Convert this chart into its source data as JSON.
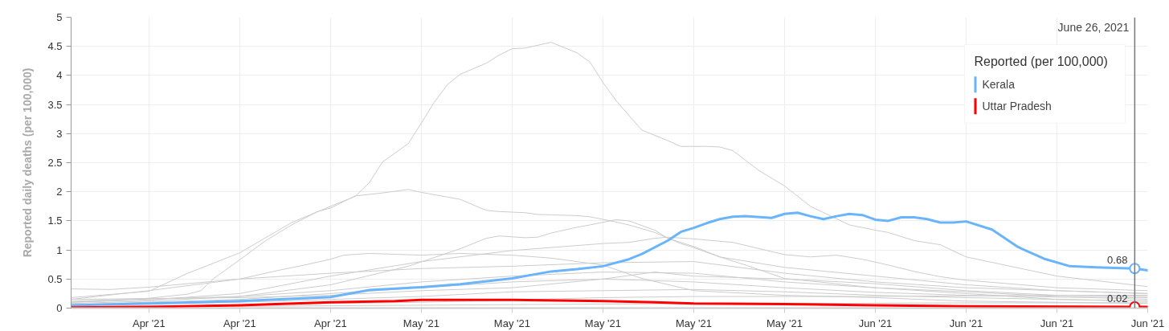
{
  "chart_data": {
    "type": "line",
    "ylabel": "Reported daily deaths (per 100,000)",
    "legend_title": "Reported (per 100,000)",
    "legend": "top right",
    "grid": true,
    "xlim": [
      "2021-04-05",
      "2021-06-27"
    ],
    "xticks": [
      {
        "value": "2021-04-11",
        "label": "Apr '21"
      },
      {
        "value": "2021-04-18",
        "label": "Apr '21"
      },
      {
        "value": "2021-04-25",
        "label": "Apr '21"
      },
      {
        "value": "2021-05-02",
        "label": "May '21"
      },
      {
        "value": "2021-05-09",
        "label": "May '21"
      },
      {
        "value": "2021-05-16",
        "label": "May '21"
      },
      {
        "value": "2021-05-23",
        "label": "May '21"
      },
      {
        "value": "2021-05-30",
        "label": "May '21"
      },
      {
        "value": "2021-06-06",
        "label": "Jun '21"
      },
      {
        "value": "2021-06-13",
        "label": "Jun '21"
      },
      {
        "value": "2021-06-20",
        "label": "Jun '21"
      },
      {
        "value": "2021-06-27",
        "label": "Jun '21"
      }
    ],
    "ylim": [
      0,
      5
    ],
    "yticks": [
      0,
      0.5,
      1,
      1.5,
      2,
      2.5,
      3,
      3.5,
      4,
      4.5,
      5
    ],
    "ref_lines": [
      {
        "axis": "x",
        "value": "2021-06-26",
        "label": "June 26, 2021",
        "color": "#777777"
      }
    ],
    "series": [
      {
        "color": "#cccccc",
        "x": [
          "2021-04-05",
          "2021-04-11",
          "2021-04-14",
          "2021-04-15",
          "2021-04-16",
          "2021-04-18",
          "2021-04-20",
          "2021-04-22",
          "2021-04-24",
          "2021-04-25",
          "2021-04-27",
          "2021-04-28",
          "2021-04-29",
          "2021-05-01",
          "2021-05-02",
          "2021-05-03",
          "2021-05-04",
          "2021-05-05",
          "2021-05-07",
          "2021-05-08",
          "2021-05-09",
          "2021-05-10",
          "2021-05-12",
          "2021-05-14",
          "2021-05-15",
          "2021-05-16",
          "2021-05-17",
          "2021-05-19",
          "2021-05-21",
          "2021-05-22",
          "2021-05-24",
          "2021-05-25",
          "2021-05-26",
          "2021-05-28",
          "2021-05-30",
          "2021-06-01",
          "2021-06-04",
          "2021-06-06",
          "2021-06-07",
          "2021-06-09",
          "2021-06-11",
          "2021-06-13",
          "2021-06-20",
          "2021-06-27"
        ],
        "values": [
          0.1,
          0.17,
          0.24,
          0.3,
          0.51,
          0.83,
          1.16,
          1.43,
          1.66,
          1.72,
          1.94,
          2.16,
          2.51,
          2.83,
          3.18,
          3.54,
          3.84,
          4.02,
          4.21,
          4.35,
          4.46,
          4.47,
          4.57,
          4.39,
          4.23,
          3.88,
          3.57,
          3.06,
          2.88,
          2.78,
          2.78,
          2.77,
          2.71,
          2.37,
          2.1,
          1.75,
          1.43,
          1.34,
          1.3,
          1.16,
          1.09,
          0.88,
          0.55,
          0.37
        ]
      },
      {
        "color": "#cccccc",
        "x": [
          "2021-04-05",
          "2021-04-11",
          "2021-04-14",
          "2021-04-18",
          "2021-04-22",
          "2021-04-25",
          "2021-04-27",
          "2021-04-29",
          "2021-05-01",
          "2021-05-02",
          "2021-05-04",
          "2021-05-05",
          "2021-05-07",
          "2021-05-08",
          "2021-05-10",
          "2021-05-11",
          "2021-05-14",
          "2021-05-15",
          "2021-05-17",
          "2021-05-18",
          "2021-05-20",
          "2021-05-22",
          "2021-05-23",
          "2021-05-25",
          "2021-05-27",
          "2021-05-30",
          "2021-06-06",
          "2021-06-13",
          "2021-06-20",
          "2021-06-27"
        ],
        "values": [
          0.18,
          0.29,
          0.6,
          0.95,
          1.47,
          1.75,
          1.93,
          1.98,
          2.04,
          1.99,
          1.91,
          1.87,
          1.68,
          1.66,
          1.64,
          1.61,
          1.59,
          1.57,
          1.48,
          1.43,
          1.3,
          1.11,
          1.04,
          0.88,
          0.74,
          0.51,
          0.35,
          0.25,
          0.15,
          0.12
        ]
      },
      {
        "color": "#cccccc",
        "x": [
          "2021-04-05",
          "2021-04-11",
          "2021-04-18",
          "2021-04-25",
          "2021-05-01",
          "2021-05-05",
          "2021-05-07",
          "2021-05-08",
          "2021-05-10",
          "2021-05-11",
          "2021-05-12",
          "2021-05-14",
          "2021-05-15",
          "2021-05-17",
          "2021-05-18",
          "2021-05-20",
          "2021-05-21",
          "2021-05-23",
          "2021-05-25",
          "2021-05-30",
          "2021-06-06",
          "2021-06-13",
          "2021-06-20",
          "2021-06-27"
        ],
        "values": [
          0.08,
          0.12,
          0.2,
          0.4,
          0.72,
          1.02,
          1.2,
          1.24,
          1.21,
          1.22,
          1.29,
          1.39,
          1.43,
          1.52,
          1.5,
          1.34,
          1.2,
          1.06,
          0.88,
          0.7,
          0.55,
          0.4,
          0.3,
          0.25
        ]
      },
      {
        "color": "#cccccc",
        "x": [
          "2021-04-05",
          "2021-04-08",
          "2021-04-11",
          "2021-04-18",
          "2021-04-25",
          "2021-05-02",
          "2021-05-09",
          "2021-05-16",
          "2021-05-23",
          "2021-05-30",
          "2021-06-06",
          "2021-06-13",
          "2021-06-20",
          "2021-06-27"
        ],
        "values": [
          0.33,
          0.32,
          0.36,
          0.5,
          0.6,
          0.68,
          0.72,
          0.78,
          0.8,
          0.6,
          0.45,
          0.35,
          0.3,
          0.25
        ]
      },
      {
        "color": "#cccccc",
        "x": [
          "2021-04-05",
          "2021-04-11",
          "2021-04-18",
          "2021-04-21",
          "2021-04-23",
          "2021-04-25",
          "2021-04-26",
          "2021-04-28",
          "2021-05-02",
          "2021-05-05",
          "2021-05-09",
          "2021-05-12",
          "2021-05-16",
          "2021-05-19",
          "2021-05-23",
          "2021-05-30",
          "2021-06-06",
          "2021-06-13",
          "2021-06-20",
          "2021-06-27"
        ],
        "values": [
          0.15,
          0.3,
          0.5,
          0.65,
          0.74,
          0.84,
          0.91,
          0.94,
          0.91,
          0.94,
          0.91,
          0.86,
          0.74,
          0.51,
          0.3,
          0.22,
          0.18,
          0.12,
          0.1,
          0.08
        ]
      },
      {
        "color": "#cccccc",
        "x": [
          "2021-04-05",
          "2021-04-11",
          "2021-04-18",
          "2021-04-25",
          "2021-05-02",
          "2021-05-09",
          "2021-05-16",
          "2021-05-18",
          "2021-05-20",
          "2021-05-21",
          "2021-05-23",
          "2021-05-26",
          "2021-05-30",
          "2021-06-01",
          "2021-06-03",
          "2021-06-05",
          "2021-06-07",
          "2021-06-09",
          "2021-06-11",
          "2021-06-13",
          "2021-06-20",
          "2021-06-27"
        ],
        "values": [
          0.1,
          0.14,
          0.25,
          0.55,
          0.8,
          0.99,
          1.11,
          1.13,
          1.2,
          1.22,
          1.19,
          1.13,
          0.92,
          0.88,
          0.91,
          0.84,
          0.74,
          0.63,
          0.54,
          0.48,
          0.35,
          0.3
        ]
      },
      {
        "color": "#cccccc",
        "x": [
          "2021-04-05",
          "2021-04-18",
          "2021-04-25",
          "2021-05-02",
          "2021-05-09",
          "2021-05-16",
          "2021-05-23",
          "2021-05-30",
          "2021-06-06",
          "2021-06-13",
          "2021-06-20",
          "2021-06-27"
        ],
        "values": [
          0.12,
          0.2,
          0.3,
          0.45,
          0.55,
          0.62,
          0.6,
          0.45,
          0.35,
          0.28,
          0.2,
          0.15
        ]
      },
      {
        "color": "#cccccc",
        "x": [
          "2021-04-05",
          "2021-04-18",
          "2021-04-25",
          "2021-05-02",
          "2021-05-09",
          "2021-05-16",
          "2021-05-23",
          "2021-05-30",
          "2021-06-06",
          "2021-06-13",
          "2021-06-20",
          "2021-06-27"
        ],
        "values": [
          0.06,
          0.15,
          0.25,
          0.35,
          0.45,
          0.5,
          0.45,
          0.35,
          0.27,
          0.22,
          0.19,
          0.18
        ]
      },
      {
        "color": "#cccccc",
        "x": [
          "2021-04-05",
          "2021-04-18",
          "2021-04-25",
          "2021-05-02",
          "2021-05-09",
          "2021-05-16",
          "2021-05-23",
          "2021-05-30",
          "2021-06-06",
          "2021-06-13",
          "2021-06-20",
          "2021-06-27"
        ],
        "values": [
          0.05,
          0.1,
          0.15,
          0.2,
          0.28,
          0.3,
          0.32,
          0.28,
          0.22,
          0.18,
          0.15,
          0.12
        ]
      },
      {
        "color": "#cccccc",
        "x": [
          "2021-04-05",
          "2021-04-18",
          "2021-04-25",
          "2021-05-02",
          "2021-05-09",
          "2021-05-16",
          "2021-05-23",
          "2021-05-30",
          "2021-06-06",
          "2021-06-13",
          "2021-06-20",
          "2021-06-27"
        ],
        "values": [
          0.03,
          0.05,
          0.08,
          0.1,
          0.14,
          0.18,
          0.2,
          0.2,
          0.2,
          0.21,
          0.22,
          0.22
        ]
      },
      {
        "color": "#cccccc",
        "x": [
          "2021-04-05",
          "2021-04-18",
          "2021-05-02",
          "2021-05-16",
          "2021-05-30",
          "2021-06-13",
          "2021-06-27"
        ],
        "values": [
          0.02,
          0.03,
          0.05,
          0.07,
          0.08,
          0.09,
          0.09
        ]
      },
      {
        "color": "#cccccc",
        "x": [
          "2021-04-05",
          "2021-04-18",
          "2021-04-25",
          "2021-05-02",
          "2021-05-09",
          "2021-05-16",
          "2021-05-20",
          "2021-05-23",
          "2021-05-30",
          "2021-06-06",
          "2021-06-13",
          "2021-06-20",
          "2021-06-27"
        ],
        "values": [
          0.15,
          0.18,
          0.22,
          0.3,
          0.35,
          0.5,
          0.62,
          0.55,
          0.5,
          0.42,
          0.3,
          0.22,
          0.2
        ]
      },
      {
        "name": "Kerala",
        "color": "#6ab4fb",
        "x": [
          "2021-04-05",
          "2021-04-11",
          "2021-04-18",
          "2021-04-25",
          "2021-04-28",
          "2021-05-02",
          "2021-05-05",
          "2021-05-09",
          "2021-05-12",
          "2021-05-14",
          "2021-05-16",
          "2021-05-18",
          "2021-05-19",
          "2021-05-21",
          "2021-05-22",
          "2021-05-23",
          "2021-05-24",
          "2021-05-25",
          "2021-05-26",
          "2021-05-27",
          "2021-05-29",
          "2021-05-30",
          "2021-05-31",
          "2021-06-01",
          "2021-06-02",
          "2021-06-03",
          "2021-06-04",
          "2021-06-05",
          "2021-06-06",
          "2021-06-07",
          "2021-06-08",
          "2021-06-09",
          "2021-06-10",
          "2021-06-11",
          "2021-06-12",
          "2021-06-13",
          "2021-06-15",
          "2021-06-17",
          "2021-06-19",
          "2021-06-21",
          "2021-06-23",
          "2021-06-26",
          "2021-06-27"
        ],
        "values": [
          0.05,
          0.08,
          0.12,
          0.19,
          0.31,
          0.36,
          0.41,
          0.51,
          0.63,
          0.67,
          0.72,
          0.84,
          0.93,
          1.16,
          1.31,
          1.38,
          1.46,
          1.53,
          1.57,
          1.58,
          1.55,
          1.62,
          1.64,
          1.58,
          1.53,
          1.58,
          1.62,
          1.6,
          1.52,
          1.5,
          1.56,
          1.56,
          1.53,
          1.47,
          1.47,
          1.49,
          1.35,
          1.05,
          0.85,
          0.72,
          0.7,
          0.68,
          0.65
        ],
        "value_labels": [
          null,
          null,
          null,
          null,
          null,
          null,
          null,
          null,
          null,
          null,
          null,
          null,
          null,
          null,
          null,
          null,
          null,
          null,
          null,
          null,
          null,
          null,
          null,
          null,
          null,
          null,
          null,
          null,
          null,
          null,
          null,
          null,
          null,
          null,
          null,
          null,
          null,
          null,
          null,
          null,
          null,
          "0.68",
          null
        ]
      },
      {
        "name": "Uttar Pradesh",
        "color": "#ff0000",
        "x": [
          "2021-04-05",
          "2021-04-11",
          "2021-04-18",
          "2021-04-25",
          "2021-04-30",
          "2021-05-02",
          "2021-05-09",
          "2021-05-16",
          "2021-05-20",
          "2021-05-23",
          "2021-05-30",
          "2021-06-06",
          "2021-06-13",
          "2021-06-26",
          "2021-06-27"
        ],
        "values": [
          0.01,
          0.02,
          0.05,
          0.1,
          0.12,
          0.14,
          0.14,
          0.12,
          0.1,
          0.08,
          0.07,
          0.05,
          0.03,
          0.02,
          0.02
        ],
        "value_labels": [
          null,
          null,
          null,
          null,
          null,
          null,
          null,
          null,
          null,
          null,
          null,
          null,
          null,
          "0.02",
          null
        ]
      }
    ]
  }
}
